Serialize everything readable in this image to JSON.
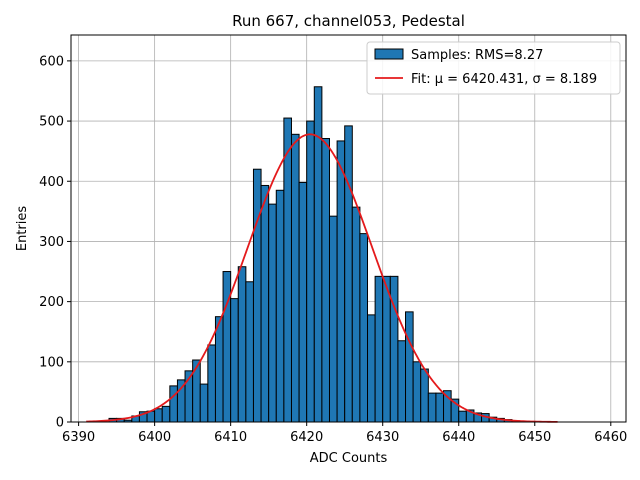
{
  "chart_data": {
    "type": "bar",
    "title": "Run 667, channel053, Pedestal",
    "xlabel": "ADC Counts",
    "ylabel": "Entries",
    "xlim": [
      6389,
      6462
    ],
    "ylim": [
      0,
      643
    ],
    "xticks": [
      6390,
      6400,
      6410,
      6420,
      6430,
      6440,
      6450,
      6460
    ],
    "yticks": [
      0,
      100,
      200,
      300,
      400,
      500,
      600
    ],
    "grid": true,
    "legend_position": "top-right",
    "bin_width": 1,
    "histogram": {
      "name": "Samples: RMS=8.27",
      "color": "#1f77b4",
      "edge_color": "#000000",
      "bin_starts": [
        6394,
        6395,
        6396,
        6397,
        6398,
        6399,
        6400,
        6401,
        6402,
        6403,
        6404,
        6405,
        6406,
        6407,
        6408,
        6409,
        6410,
        6411,
        6412,
        6413,
        6414,
        6415,
        6416,
        6417,
        6418,
        6419,
        6420,
        6421,
        6422,
        6423,
        6424,
        6425,
        6426,
        6427,
        6428,
        6429,
        6430,
        6431,
        6432,
        6433,
        6434,
        6435,
        6436,
        6437,
        6438,
        6439,
        6440,
        6441,
        6442,
        6443,
        6444,
        6445,
        6446,
        6447,
        6448
      ],
      "counts": [
        6,
        6,
        3,
        10,
        17,
        18,
        22,
        26,
        60,
        70,
        85,
        103,
        63,
        128,
        175,
        250,
        205,
        258,
        233,
        420,
        393,
        362,
        385,
        505,
        478,
        398,
        500,
        557,
        471,
        342,
        467,
        492,
        357,
        313,
        178,
        242,
        242,
        242,
        135,
        183,
        100,
        88,
        48,
        48,
        52,
        38,
        18,
        20,
        15,
        14,
        8,
        6,
        4,
        2,
        1
      ]
    },
    "fit": {
      "name": "Fit: μ = 6420.431, σ = 8.189",
      "mu": 6420.431,
      "sigma": 8.189,
      "amplitude": 478,
      "x_range": [
        6391,
        6453
      ],
      "color": "#e41a1c"
    }
  }
}
